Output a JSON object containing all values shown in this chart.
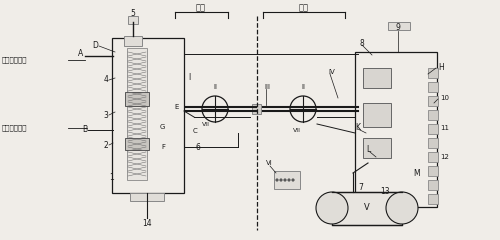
{
  "bg_color": "#f0ede8",
  "line_color": "#1a1a1a",
  "title_zhuche": "主车",
  "title_guache": "挂车",
  "label_left1": "通主车贮气阀",
  "label_left2": "通主车制动阀",
  "fig_width": 5.0,
  "fig_height": 2.4,
  "dpi": 100
}
